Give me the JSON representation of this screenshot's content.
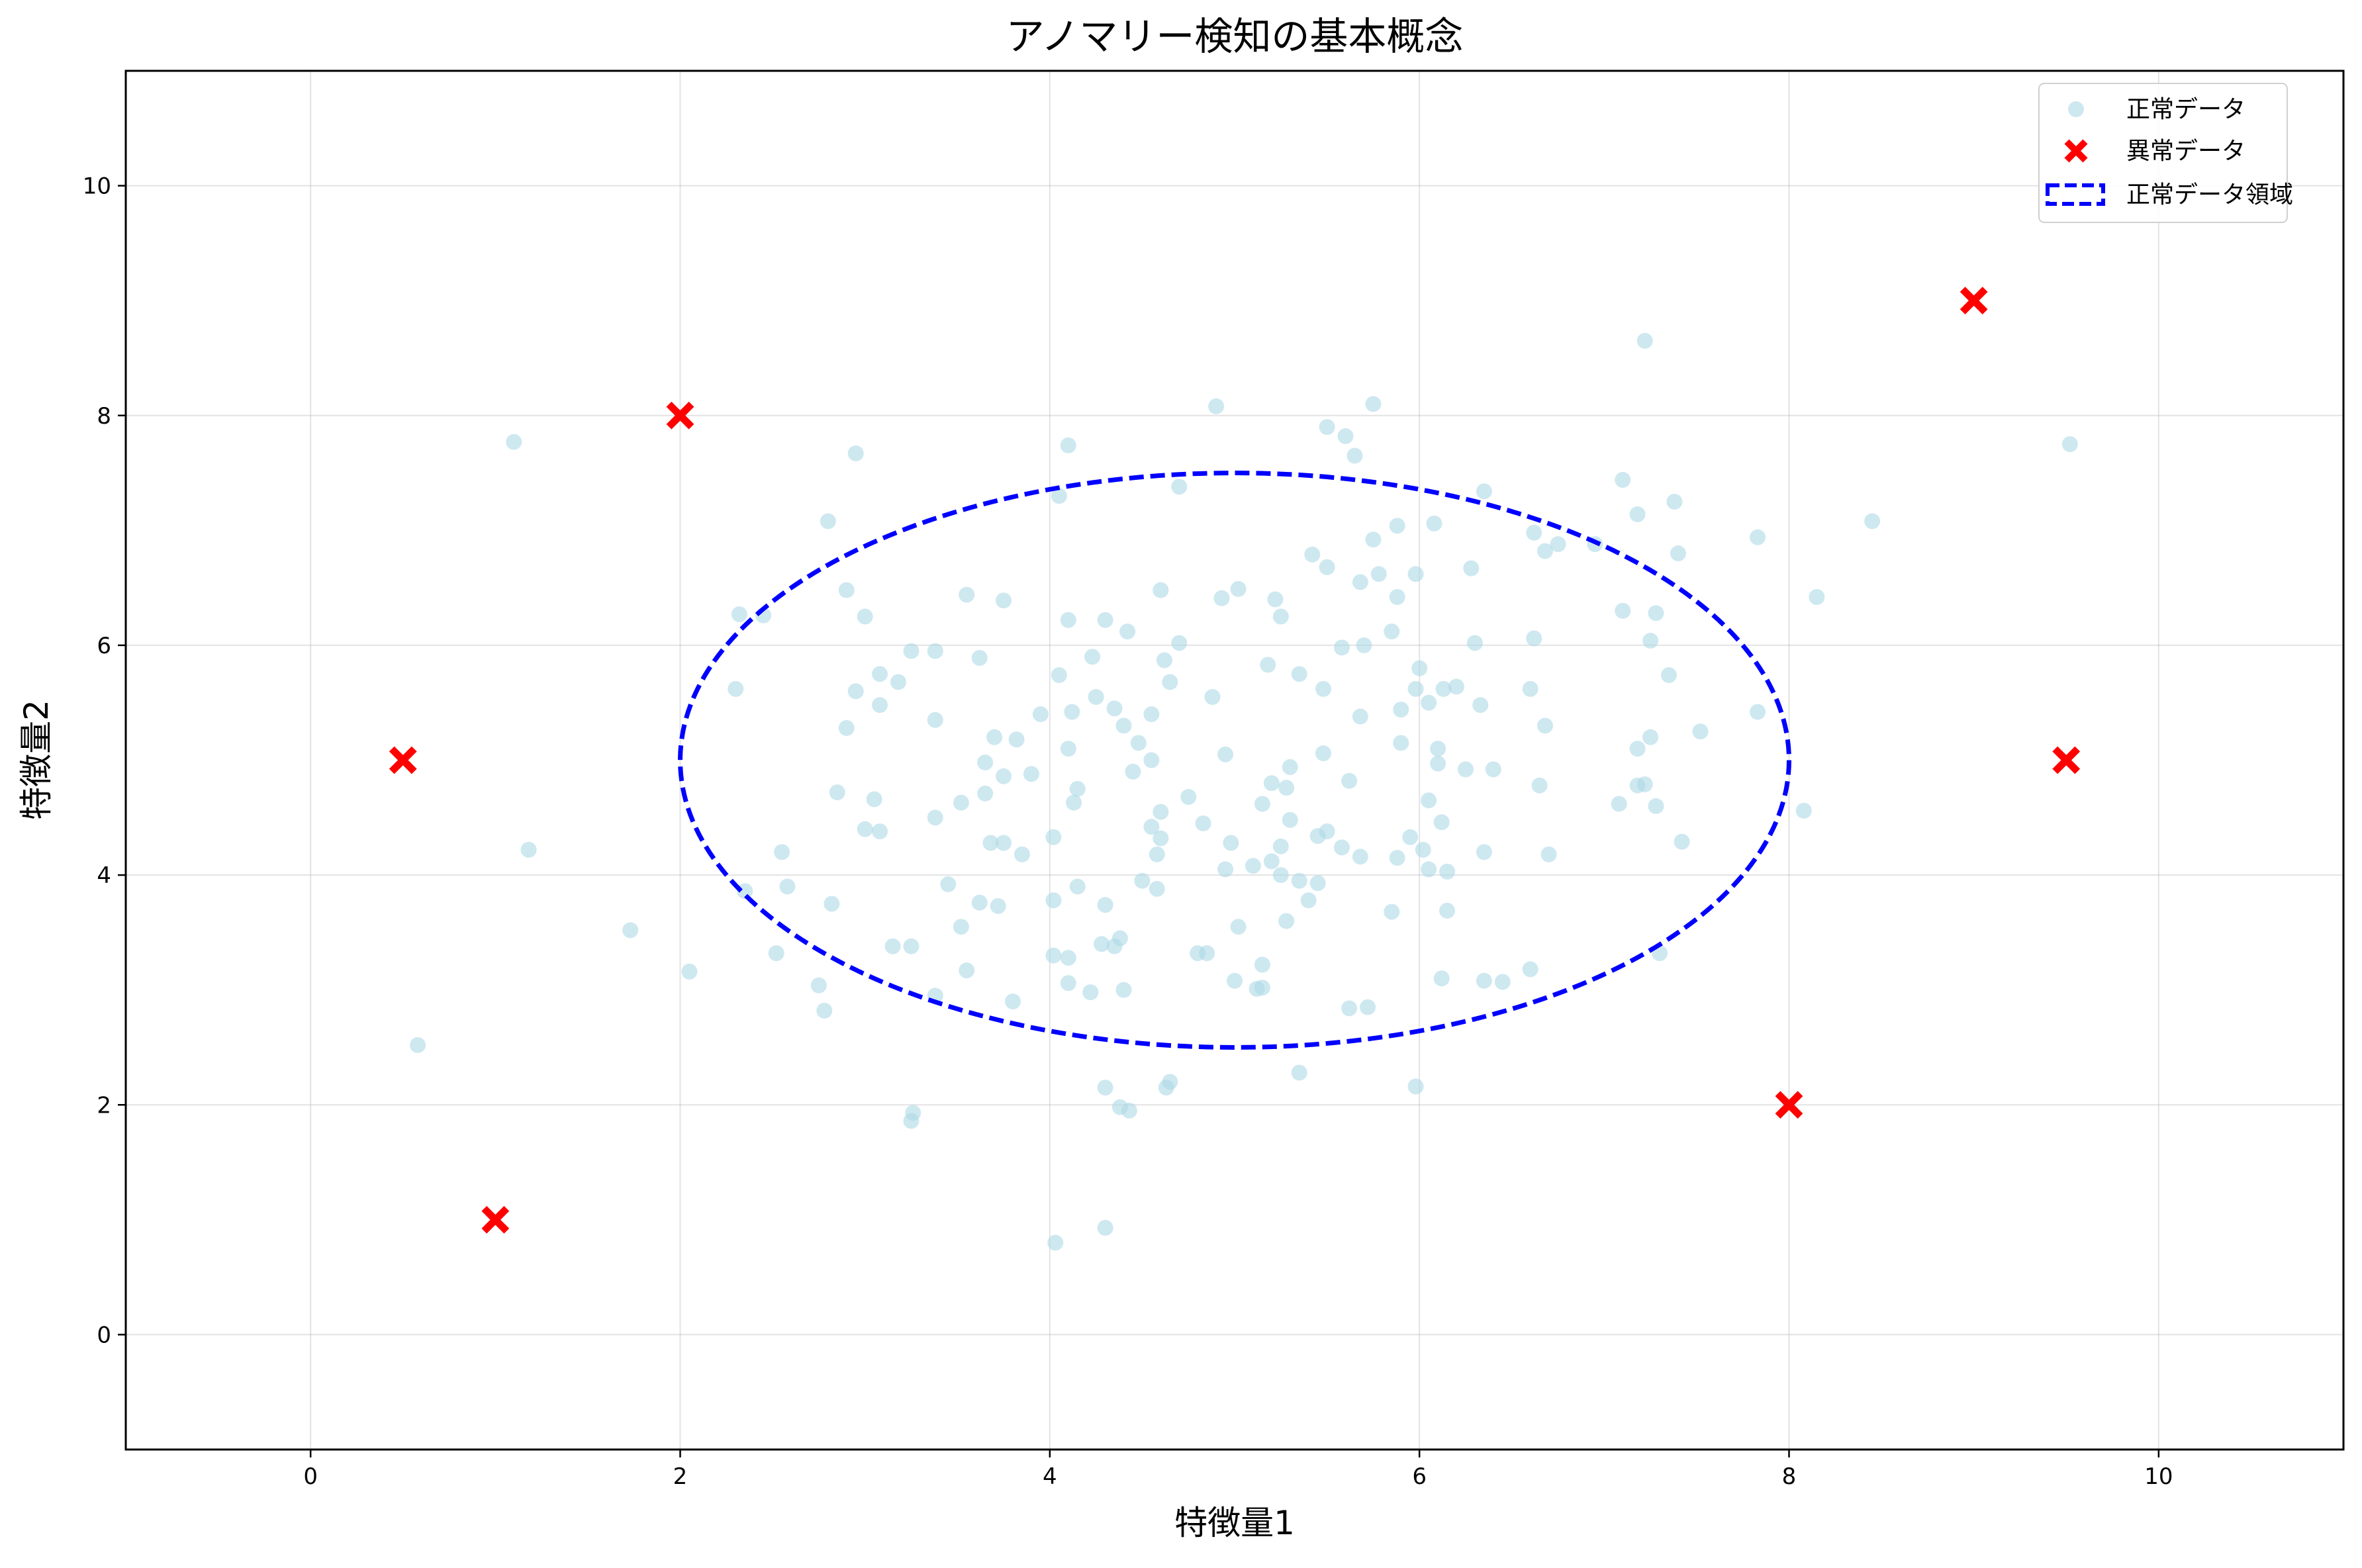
{
  "chart_data": {
    "type": "scatter",
    "title": "アノマリー検知の基本概念",
    "xlabel": "特徴量1",
    "ylabel": "特徴量2",
    "xlim": [
      -1,
      11
    ],
    "ylim": [
      -1,
      11
    ],
    "xticks": [
      0,
      2,
      4,
      6,
      8,
      10
    ],
    "yticks": [
      0,
      2,
      4,
      6,
      8,
      10
    ],
    "grid": true,
    "legend_position": "upper right",
    "legend": [
      {
        "label": "正常データ",
        "marker": "circle",
        "color": "#add8e6"
      },
      {
        "label": "異常データ",
        "marker": "x",
        "color": "#ff0000"
      },
      {
        "label": "正常データ領域",
        "marker": "dashed-box",
        "color": "#0000ff"
      }
    ],
    "series": [
      {
        "name": "正常データ",
        "color": "#add8e6",
        "points": [
          [
            1.1,
            7.77
          ],
          [
            7.22,
            8.65
          ],
          [
            9.52,
            7.75
          ],
          [
            5.75,
            8.1
          ],
          [
            4.9,
            8.08
          ],
          [
            5.5,
            7.9
          ],
          [
            5.6,
            7.82
          ],
          [
            5.65,
            7.65
          ],
          [
            4.1,
            7.74
          ],
          [
            2.95,
            7.67
          ],
          [
            4.7,
            7.38
          ],
          [
            4.05,
            7.3
          ],
          [
            7.1,
            7.44
          ],
          [
            6.35,
            7.34
          ],
          [
            7.38,
            7.25
          ],
          [
            7.18,
            7.14
          ],
          [
            2.8,
            7.08
          ],
          [
            8.45,
            7.08
          ],
          [
            6.08,
            7.06
          ],
          [
            5.88,
            7.04
          ],
          [
            6.62,
            6.98
          ],
          [
            7.83,
            6.94
          ],
          [
            5.75,
            6.92
          ],
          [
            6.95,
            6.88
          ],
          [
            6.75,
            6.88
          ],
          [
            6.68,
            6.82
          ],
          [
            7.4,
            6.8
          ],
          [
            5.42,
            6.79
          ],
          [
            5.5,
            6.68
          ],
          [
            6.28,
            6.67
          ],
          [
            5.78,
            6.62
          ],
          [
            5.98,
            6.62
          ],
          [
            5.68,
            6.55
          ],
          [
            4.6,
            6.48
          ],
          [
            5.02,
            6.49
          ],
          [
            2.9,
            6.48
          ],
          [
            5.88,
            6.42
          ],
          [
            3.55,
            6.44
          ],
          [
            8.15,
            6.42
          ],
          [
            4.93,
            6.41
          ],
          [
            5.22,
            6.4
          ],
          [
            3.75,
            6.39
          ],
          [
            7.28,
            6.28
          ],
          [
            2.32,
            6.27
          ],
          [
            2.45,
            6.26
          ],
          [
            3.0,
            6.25
          ],
          [
            5.25,
            6.25
          ],
          [
            7.1,
            6.3
          ],
          [
            4.1,
            6.22
          ],
          [
            4.3,
            6.22
          ],
          [
            4.42,
            6.12
          ],
          [
            5.85,
            6.12
          ],
          [
            7.25,
            6.04
          ],
          [
            6.62,
            6.06
          ],
          [
            4.7,
            6.02
          ],
          [
            5.7,
            6.0
          ],
          [
            5.58,
            5.98
          ],
          [
            6.3,
            6.02
          ],
          [
            4.23,
            5.9
          ],
          [
            6.0,
            5.8
          ],
          [
            3.25,
            5.95
          ],
          [
            3.38,
            5.95
          ],
          [
            3.62,
            5.89
          ],
          [
            4.62,
            5.87
          ],
          [
            5.18,
            5.83
          ],
          [
            5.35,
            5.75
          ],
          [
            7.35,
            5.74
          ],
          [
            3.08,
            5.75
          ],
          [
            4.05,
            5.74
          ],
          [
            3.18,
            5.68
          ],
          [
            4.65,
            5.68
          ],
          [
            5.48,
            5.62
          ],
          [
            6.13,
            5.62
          ],
          [
            6.6,
            5.62
          ],
          [
            2.3,
            5.62
          ],
          [
            2.95,
            5.6
          ],
          [
            4.25,
            5.55
          ],
          [
            4.88,
            5.55
          ],
          [
            5.98,
            5.62
          ],
          [
            6.2,
            5.64
          ],
          [
            4.35,
            5.45
          ],
          [
            3.08,
            5.48
          ],
          [
            3.95,
            5.4
          ],
          [
            4.12,
            5.42
          ],
          [
            4.55,
            5.4
          ],
          [
            6.05,
            5.5
          ],
          [
            6.33,
            5.48
          ],
          [
            5.9,
            5.44
          ],
          [
            7.83,
            5.42
          ],
          [
            5.68,
            5.38
          ],
          [
            3.38,
            5.35
          ],
          [
            4.4,
            5.3
          ],
          [
            6.68,
            5.3
          ],
          [
            2.9,
            5.28
          ],
          [
            7.52,
            5.25
          ],
          [
            3.82,
            5.18
          ],
          [
            3.7,
            5.2
          ],
          [
            4.48,
            5.15
          ],
          [
            5.9,
            5.15
          ],
          [
            7.25,
            5.2
          ],
          [
            4.1,
            5.1
          ],
          [
            4.95,
            5.05
          ],
          [
            6.1,
            5.1
          ],
          [
            7.18,
            5.1
          ],
          [
            5.48,
            5.06
          ],
          [
            4.55,
            5.0
          ],
          [
            6.1,
            4.97
          ],
          [
            3.65,
            4.98
          ],
          [
            5.3,
            4.94
          ],
          [
            6.25,
            4.92
          ],
          [
            4.45,
            4.9
          ],
          [
            3.75,
            4.86
          ],
          [
            6.4,
            4.92
          ],
          [
            3.9,
            4.88
          ],
          [
            4.15,
            4.75
          ],
          [
            5.2,
            4.8
          ],
          [
            5.28,
            4.76
          ],
          [
            5.62,
            4.82
          ],
          [
            6.65,
            4.78
          ],
          [
            7.22,
            4.79
          ],
          [
            7.18,
            4.78
          ],
          [
            2.85,
            4.72
          ],
          [
            3.05,
            4.66
          ],
          [
            3.65,
            4.71
          ],
          [
            4.13,
            4.63
          ],
          [
            4.75,
            4.68
          ],
          [
            5.15,
            4.62
          ],
          [
            6.05,
            4.65
          ],
          [
            7.08,
            4.62
          ],
          [
            7.28,
            4.6
          ],
          [
            3.52,
            4.63
          ],
          [
            4.6,
            4.55
          ],
          [
            5.3,
            4.48
          ],
          [
            4.83,
            4.45
          ],
          [
            3.38,
            4.5
          ],
          [
            6.12,
            4.46
          ],
          [
            4.55,
            4.42
          ],
          [
            8.08,
            4.56
          ],
          [
            3.0,
            4.4
          ],
          [
            3.08,
            4.38
          ],
          [
            4.02,
            4.33
          ],
          [
            5.5,
            4.38
          ],
          [
            5.95,
            4.33
          ],
          [
            3.68,
            4.28
          ],
          [
            3.75,
            4.28
          ],
          [
            4.6,
            4.32
          ],
          [
            5.25,
            4.25
          ],
          [
            5.58,
            4.24
          ],
          [
            5.45,
            4.34
          ],
          [
            6.02,
            4.22
          ],
          [
            6.35,
            4.2
          ],
          [
            6.7,
            4.18
          ],
          [
            7.42,
            4.29
          ],
          [
            1.18,
            4.22
          ],
          [
            2.55,
            4.2
          ],
          [
            3.85,
            4.18
          ],
          [
            4.58,
            4.18
          ],
          [
            5.2,
            4.12
          ],
          [
            5.68,
            4.16
          ],
          [
            5.88,
            4.15
          ],
          [
            4.98,
            4.28
          ],
          [
            5.1,
            4.08
          ],
          [
            5.25,
            4.0
          ],
          [
            5.35,
            3.95
          ],
          [
            4.95,
            4.05
          ],
          [
            6.05,
            4.05
          ],
          [
            6.15,
            4.03
          ],
          [
            4.5,
            3.95
          ],
          [
            5.45,
            3.93
          ],
          [
            3.45,
            3.92
          ],
          [
            4.58,
            3.88
          ],
          [
            2.58,
            3.9
          ],
          [
            2.35,
            3.86
          ],
          [
            4.15,
            3.9
          ],
          [
            4.02,
            3.78
          ],
          [
            5.4,
            3.78
          ],
          [
            2.82,
            3.75
          ],
          [
            4.3,
            3.74
          ],
          [
            3.72,
            3.73
          ],
          [
            3.62,
            3.76
          ],
          [
            5.85,
            3.68
          ],
          [
            6.15,
            3.69
          ],
          [
            5.02,
            3.55
          ],
          [
            3.52,
            3.55
          ],
          [
            5.28,
            3.6
          ],
          [
            1.73,
            3.52
          ],
          [
            4.38,
            3.45
          ],
          [
            4.28,
            3.4
          ],
          [
            4.35,
            3.38
          ],
          [
            3.15,
            3.38
          ],
          [
            3.25,
            3.38
          ],
          [
            2.52,
            3.32
          ],
          [
            4.85,
            3.32
          ],
          [
            4.8,
            3.32
          ],
          [
            4.02,
            3.3
          ],
          [
            4.1,
            3.28
          ],
          [
            7.3,
            3.32
          ],
          [
            5.15,
            3.22
          ],
          [
            6.6,
            3.18
          ],
          [
            3.55,
            3.17
          ],
          [
            2.05,
            3.16
          ],
          [
            6.12,
            3.1
          ],
          [
            6.35,
            3.08
          ],
          [
            6.45,
            3.07
          ],
          [
            4.1,
            3.06
          ],
          [
            2.75,
            3.04
          ],
          [
            5.0,
            3.08
          ],
          [
            5.15,
            3.02
          ],
          [
            5.12,
            3.01
          ],
          [
            4.22,
            2.98
          ],
          [
            4.4,
            3.0
          ],
          [
            3.38,
            2.95
          ],
          [
            3.8,
            2.9
          ],
          [
            5.62,
            2.84
          ],
          [
            5.72,
            2.85
          ],
          [
            2.78,
            2.82
          ],
          [
            0.58,
            2.52
          ],
          [
            5.35,
            2.28
          ],
          [
            4.65,
            2.2
          ],
          [
            4.63,
            2.15
          ],
          [
            4.3,
            2.15
          ],
          [
            5.98,
            2.16
          ],
          [
            4.38,
            1.98
          ],
          [
            4.43,
            1.95
          ],
          [
            3.26,
            1.93
          ],
          [
            3.25,
            1.86
          ],
          [
            4.3,
            0.93
          ],
          [
            4.03,
            0.8
          ]
        ]
      },
      {
        "name": "異常データ",
        "color": "#ff0000",
        "points": [
          [
            2,
            8
          ],
          [
            9,
            9
          ],
          [
            0.5,
            5
          ],
          [
            9.5,
            5
          ],
          [
            8,
            2
          ],
          [
            1,
            1
          ]
        ]
      },
      {
        "name": "正常データ領域",
        "color": "#0000ff",
        "ellipse": {
          "center": [
            5,
            5
          ],
          "width": 6,
          "height": 5
        }
      }
    ]
  }
}
